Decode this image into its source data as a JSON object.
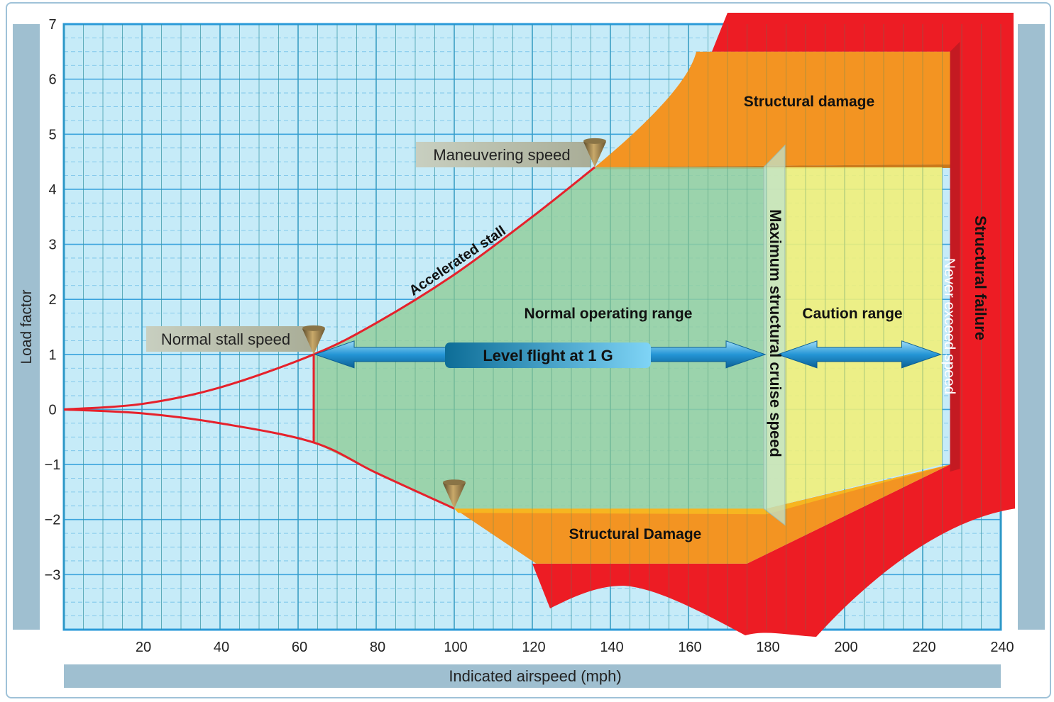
{
  "chart_data": {
    "type": "area",
    "xlabel": "Indicated airspeed (mph)",
    "ylabel": "Load factor",
    "xlim": [
      0,
      240
    ],
    "ylim": [
      -4,
      7
    ],
    "x_ticks": [
      "20",
      "40",
      "60",
      "80",
      "100",
      "120",
      "140",
      "160",
      "180",
      "200",
      "220",
      "240"
    ],
    "x_tick_values": [
      20,
      40,
      60,
      80,
      100,
      120,
      140,
      160,
      180,
      200,
      220,
      240
    ],
    "y_ticks": [
      "7",
      "6",
      "5",
      "4",
      "3",
      "2",
      "1",
      "0",
      "−1",
      "−2",
      "−3"
    ],
    "y_tick_values": [
      7,
      6,
      5,
      4,
      3,
      2,
      1,
      0,
      -1,
      -2,
      -3
    ],
    "grid": true,
    "stall_curve_upper": {
      "x": [
        0,
        20,
        40,
        64,
        80,
        100,
        120,
        136
      ],
      "y": [
        0,
        0.1,
        0.4,
        1.0,
        1.57,
        2.45,
        3.5,
        4.4
      ]
    },
    "stall_curve_lower": {
      "x": [
        0,
        20,
        40,
        64,
        80,
        100
      ],
      "y": [
        0,
        -0.07,
        -0.25,
        -0.6,
        -1.15,
        -1.8
      ]
    },
    "key_speeds": {
      "normal_stall_speed": 64,
      "maneuvering_speed": 136,
      "max_structural_cruise_speed": 180,
      "never_exceed_speed": 225
    },
    "limit_load_factors": {
      "positive": 4.4,
      "negative": -1.8
    },
    "regions": {
      "normal_operating": {
        "label": "Normal operating range",
        "color": "#93cf9f"
      },
      "caution": {
        "label": "Caution range",
        "color": "#f0f07a"
      },
      "structural_damage_upper": {
        "label": "Structural damage",
        "color": "#f39422"
      },
      "structural_damage_lower": {
        "label": "Structural Damage",
        "color": "#f39422"
      },
      "structural_failure": {
        "label": "Structural  failure",
        "color": "#ed1c24"
      }
    },
    "annotations": {
      "accelerated_stall": "Accelerated stall",
      "normal_stall_speed": "Normal stall speed",
      "maneuvering_speed": "Maneuvering speed",
      "level_flight": "Level flight at 1 G",
      "max_cruise": "Maximum structural cruise speed",
      "never_exceed": "Never exceed speed"
    },
    "colors": {
      "grid_bg": "#c6ebf8",
      "grid_line": "#3ba4dd",
      "axis_bar": "#9fbfd0",
      "curve": "#e6212b",
      "arrow": "#2596d6"
    }
  }
}
